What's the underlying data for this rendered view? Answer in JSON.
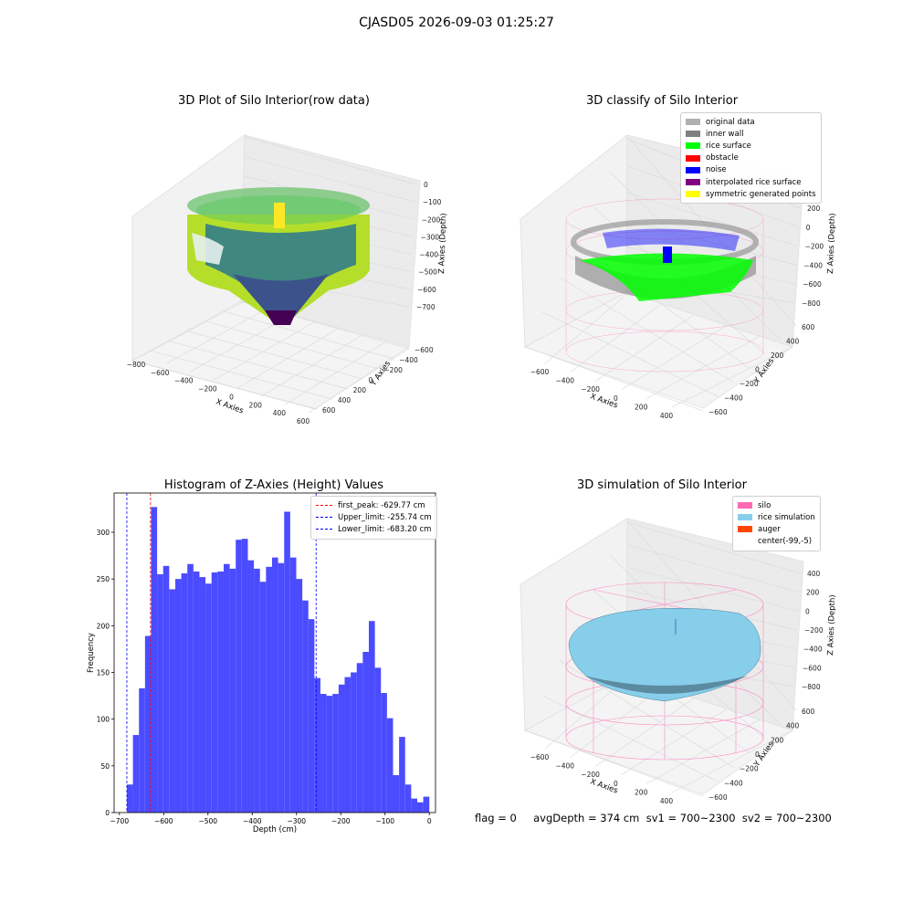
{
  "figure": {
    "suptitle": "CJASD05 2026-09-03 01:25:27",
    "footer": "flag = 0     avgDepth = 374 cm  sv1 = 700~2300  sv2 = 700~2300"
  },
  "colors": {
    "original_data": "#b0b0b0",
    "inner_wall": "#808080",
    "rice_surface": "#00ff00",
    "obstacle": "#ff0000",
    "noise": "#0000ff",
    "interpolated": "#800080",
    "symmetric": "#ffff00",
    "silo": "#ff69b4",
    "rice_sim": "#87ceeb",
    "auger": "#ff4500",
    "hist_bar": "#4b4bff",
    "first_peak_line": "#ff0000",
    "limit_line": "#0000ff"
  },
  "panels": {
    "p1": {
      "title": "3D Plot of Silo Interior(row data)",
      "xlabel": "X Axies",
      "ylabel": "Y Axies",
      "zlabel": "Z Axies (Depth)",
      "xticks": [
        "−800",
        "−600",
        "−400",
        "−200",
        "0",
        "200",
        "400",
        "600"
      ],
      "yticks": [
        "600",
        "400",
        "200",
        "0",
        "−200",
        "−400",
        "−600"
      ],
      "zticks": [
        "0",
        "−100",
        "−200",
        "−300",
        "−400",
        "−500",
        "−600",
        "−700"
      ]
    },
    "p2": {
      "title": "3D classify of Silo Interior",
      "xlabel": "X Axies",
      "ylabel": "Y Axies",
      "zlabel": "Z Axies (Depth)",
      "xticks": [
        "−600",
        "−400",
        "−200",
        "0",
        "200",
        "400"
      ],
      "yticks": [
        "600",
        "400",
        "200",
        "0",
        "−200",
        "−400",
        "−600"
      ],
      "zticks": [
        "200",
        "0",
        "−200",
        "−400",
        "−600",
        "−800"
      ],
      "legend": [
        "original data",
        "inner wall",
        "rice surface",
        "obstacle",
        "noise",
        "interpolated rice surface",
        "symmetric generated points"
      ]
    },
    "p4": {
      "title": "3D simulation of Silo Interior",
      "xlabel": "X Axies",
      "ylabel": "Y Axies",
      "zlabel": "Z Axies (Depth)",
      "xticks": [
        "−600",
        "−400",
        "−200",
        "0",
        "200",
        "400"
      ],
      "yticks": [
        "600",
        "400",
        "200",
        "0",
        "−200",
        "−400",
        "−600"
      ],
      "zticks": [
        "400",
        "200",
        "0",
        "−200",
        "−400",
        "−600",
        "−800"
      ],
      "legend": [
        "silo",
        "rice simulation",
        "auger",
        "center(-99,-5)"
      ]
    }
  },
  "chart_data": {
    "type": "bar",
    "title": "Histogram of Z-Axies (Height) Values",
    "xlabel": "Depth (cm)",
    "ylabel": "Frequency",
    "xlim": [
      -712,
      14
    ],
    "ylim": [
      0,
      342
    ],
    "xticks": [
      -700,
      -600,
      -500,
      -400,
      -300,
      -200,
      -100,
      0
    ],
    "xtick_labels": [
      "−700",
      "−600",
      "−500",
      "−400",
      "−300",
      "−200",
      "−100",
      "0"
    ],
    "yticks": [
      0,
      50,
      100,
      150,
      200,
      250,
      300
    ],
    "yticks_labels": [
      "0",
      "50",
      "100",
      "150",
      "200",
      "250",
      "300"
    ],
    "bins": {
      "start": -683.2,
      "width": 13.665,
      "counts": [
        30,
        83,
        133,
        189,
        327,
        255,
        264,
        239,
        250,
        256,
        266,
        258,
        252,
        245,
        257,
        258,
        266,
        261,
        292,
        293,
        270,
        261,
        247,
        263,
        273,
        267,
        322,
        273,
        250,
        227,
        207,
        144,
        127,
        125,
        127,
        137,
        145,
        150,
        160,
        172,
        205,
        155,
        128,
        101,
        40,
        81,
        30,
        15,
        11,
        17
      ]
    },
    "vlines": [
      {
        "value": -629.77,
        "label": "first_peak: -629.77 cm",
        "color": "#ff0000"
      },
      {
        "value": -255.74,
        "label": "Upper_limit: -255.74 cm",
        "color": "#0000ff"
      },
      {
        "value": -683.2,
        "label": "Lower_limit: -683.20 cm",
        "color": "#0000ff"
      }
    ],
    "legend_position": "upper right"
  }
}
